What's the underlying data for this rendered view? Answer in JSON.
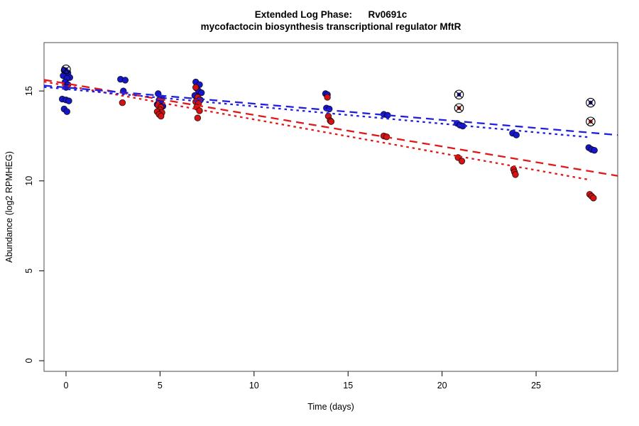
{
  "title": {
    "line1": "Extended Log Phase:      Rv0691c",
    "line2": "mycofactocin biosynthesis transcriptional regulator MftR"
  },
  "chart_data": {
    "type": "scatter",
    "title": "Extended Log Phase: Rv0691c",
    "subtitle": "mycofactocin biosynthesis transcriptional regulator MftR",
    "xlabel": "Time  (days)",
    "ylabel": "Abundance  (log2 RPMHEG)",
    "xlim": [
      -1.17,
      29.34
    ],
    "ylim": [
      -0.59,
      17.69
    ],
    "x_ticks": [
      0,
      5,
      10,
      15,
      20,
      25
    ],
    "y_ticks": [
      0,
      5,
      10,
      15
    ],
    "grid": false,
    "legend": "none",
    "colors": {
      "blue_point": "#1616c8",
      "red_point": "#d31212",
      "blue_line": "#2020dd",
      "red_line": "#e01818",
      "marker_edge": "#000000",
      "box": "#4d4d4d",
      "text": "#000000"
    },
    "series": [
      {
        "name": "blue-replicates",
        "marker": "circle",
        "color_key": "blue_point",
        "points": [
          [
            -0.1,
            16.15
          ],
          [
            0.1,
            16.0
          ],
          [
            -0.15,
            15.85
          ],
          [
            0.2,
            15.75
          ],
          [
            0.05,
            15.7
          ],
          [
            -0.05,
            15.5
          ],
          [
            0.1,
            15.35
          ],
          [
            0.0,
            15.2
          ],
          [
            -0.2,
            14.55
          ],
          [
            0.0,
            14.5
          ],
          [
            0.15,
            14.45
          ],
          [
            -0.1,
            14.0
          ],
          [
            0.05,
            13.85
          ],
          [
            2.9,
            15.65
          ],
          [
            3.15,
            15.6
          ],
          [
            3.05,
            15.0
          ],
          [
            4.9,
            14.85
          ],
          [
            5.1,
            14.6
          ],
          [
            4.95,
            14.5
          ],
          [
            5.05,
            14.35
          ],
          [
            4.85,
            14.25
          ],
          [
            5.15,
            14.15
          ],
          [
            5.0,
            14.05
          ],
          [
            6.9,
            15.5
          ],
          [
            7.1,
            15.35
          ],
          [
            6.95,
            15.15
          ],
          [
            7.05,
            15.0
          ],
          [
            7.2,
            14.9
          ],
          [
            6.85,
            14.75
          ],
          [
            7.0,
            14.6
          ],
          [
            7.15,
            14.5
          ],
          [
            6.95,
            14.45
          ],
          [
            13.8,
            14.85
          ],
          [
            13.9,
            14.8
          ],
          [
            13.85,
            14.05
          ],
          [
            14.0,
            14.0
          ],
          [
            16.9,
            13.7
          ],
          [
            17.1,
            13.65
          ],
          [
            20.8,
            13.2
          ],
          [
            20.95,
            13.1
          ],
          [
            21.1,
            13.05
          ],
          [
            23.75,
            12.65
          ],
          [
            23.95,
            12.55
          ],
          [
            27.8,
            11.85
          ],
          [
            27.95,
            11.75
          ],
          [
            28.1,
            11.7
          ]
        ]
      },
      {
        "name": "red-replicates",
        "marker": "circle",
        "color_key": "red_point",
        "points": [
          [
            3.0,
            14.35
          ],
          [
            4.9,
            14.2
          ],
          [
            5.05,
            14.1
          ],
          [
            5.0,
            13.95
          ],
          [
            4.85,
            13.85
          ],
          [
            5.1,
            13.8
          ],
          [
            4.95,
            13.7
          ],
          [
            5.05,
            13.6
          ],
          [
            6.9,
            15.2
          ],
          [
            7.0,
            14.65
          ],
          [
            7.1,
            14.5
          ],
          [
            6.9,
            14.4
          ],
          [
            7.05,
            14.3
          ],
          [
            6.95,
            14.1
          ],
          [
            7.1,
            13.9
          ],
          [
            7.0,
            13.5
          ],
          [
            13.9,
            14.65
          ],
          [
            13.95,
            13.6
          ],
          [
            14.05,
            13.35
          ],
          [
            14.1,
            13.3
          ],
          [
            16.9,
            12.5
          ],
          [
            17.05,
            12.45
          ],
          [
            20.85,
            11.3
          ],
          [
            21.05,
            11.1
          ],
          [
            23.8,
            10.65
          ],
          [
            23.85,
            10.5
          ],
          [
            23.9,
            10.35
          ],
          [
            27.85,
            9.25
          ],
          [
            27.95,
            9.15
          ],
          [
            28.05,
            9.05
          ]
        ]
      },
      {
        "name": "blue-flagged-outliers",
        "marker": "circle-cross",
        "color_key": "blue_point",
        "points": [
          [
            0.0,
            16.2
          ],
          [
            20.9,
            14.8
          ],
          [
            27.9,
            14.35
          ]
        ]
      },
      {
        "name": "red-flagged-outliers",
        "marker": "circle-cross",
        "color_key": "red_point",
        "points": [
          [
            20.9,
            14.05
          ],
          [
            27.9,
            13.3
          ]
        ]
      }
    ],
    "trend_lines": [
      {
        "name": "red-dashed-fit",
        "color_key": "red_line",
        "style": "dashed",
        "x1": -1.17,
        "y1": 15.62,
        "x2": 29.34,
        "y2": 10.28
      },
      {
        "name": "red-dotted-fit",
        "color_key": "red_line",
        "style": "dotted",
        "x1": -1.17,
        "y1": 15.52,
        "x2": 27.9,
        "y2": 10.05
      },
      {
        "name": "blue-dashed-fit",
        "color_key": "blue_line",
        "style": "dashed",
        "x1": -1.17,
        "y1": 15.3,
        "x2": 29.34,
        "y2": 12.55
      },
      {
        "name": "blue-dotted-fit",
        "color_key": "blue_line",
        "style": "dotted",
        "x1": -1.17,
        "y1": 15.22,
        "x2": 27.9,
        "y2": 12.42
      }
    ]
  }
}
